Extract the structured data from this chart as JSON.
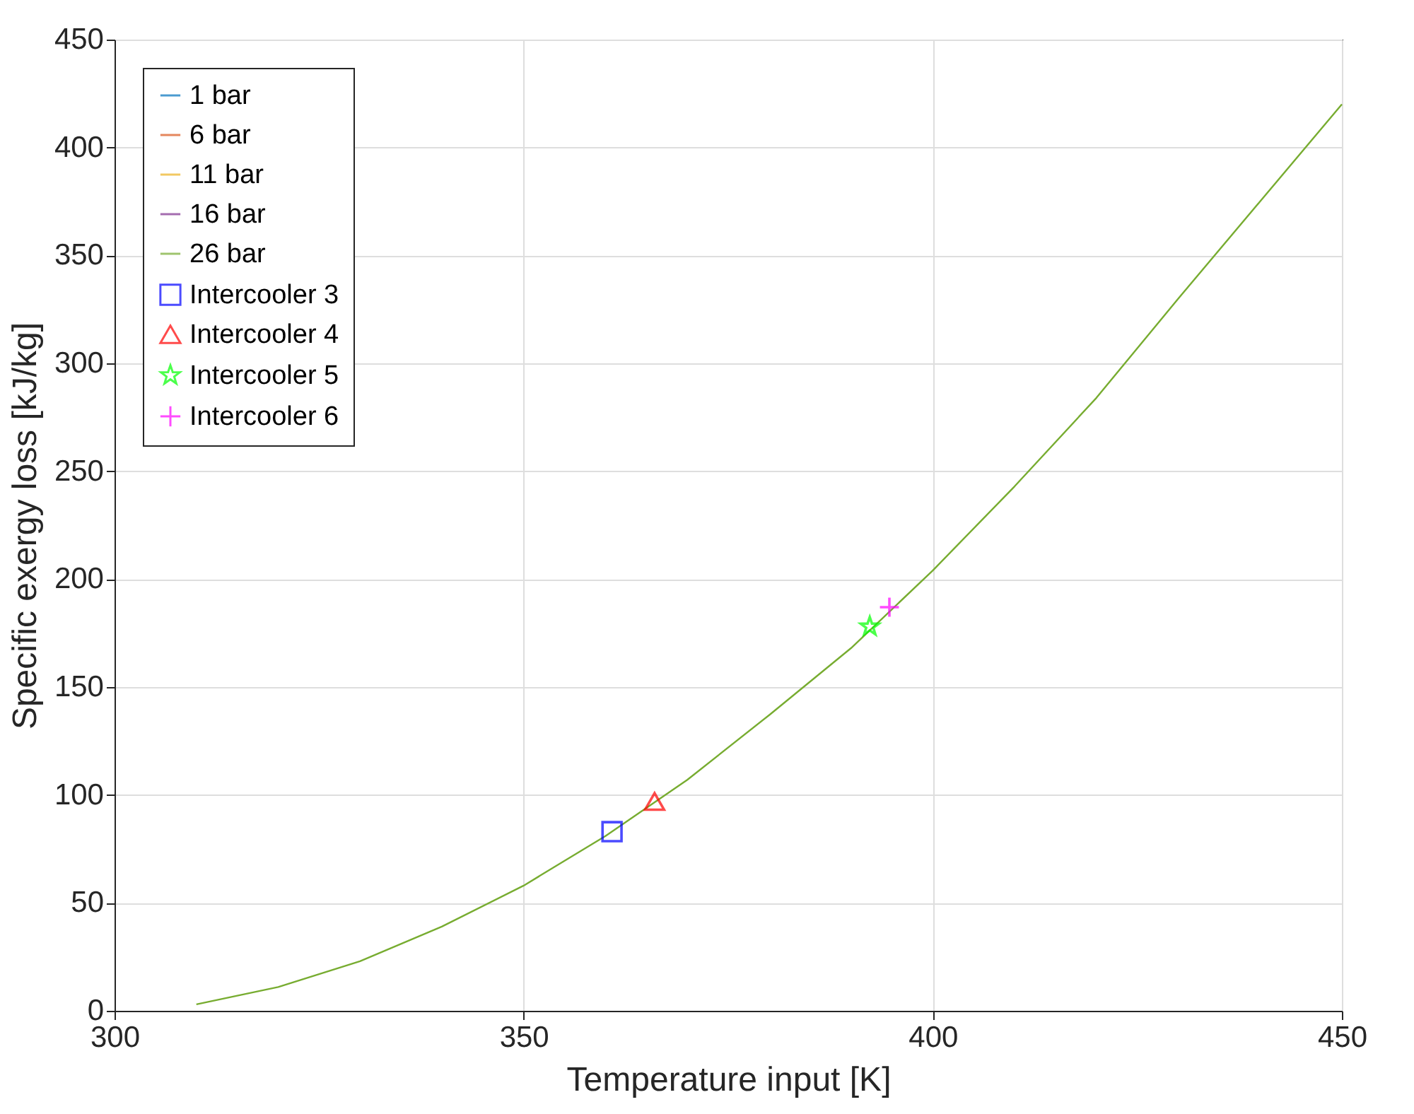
{
  "chart_data": {
    "type": "line",
    "xlabel": "Temperature input [K]",
    "ylabel": "Specific exergy loss [kJ/kg]",
    "x": [
      310,
      320,
      330,
      340,
      350,
      360,
      370,
      380,
      390,
      400,
      410,
      420,
      430,
      440,
      450
    ],
    "series": [
      {
        "name": "1 bar",
        "color": "#0072bd",
        "values": [
          null,
          null,
          null,
          null,
          null,
          null,
          null,
          null,
          null,
          null,
          null,
          null,
          null,
          null,
          null
        ]
      },
      {
        "name": "6 bar",
        "color": "#d95319",
        "values": [
          null,
          null,
          null,
          null,
          null,
          null,
          null,
          null,
          null,
          null,
          null,
          null,
          null,
          null,
          null
        ]
      },
      {
        "name": "11 bar",
        "color": "#edb120",
        "values": [
          null,
          null,
          null,
          null,
          null,
          null,
          null,
          null,
          null,
          null,
          null,
          null,
          null,
          null,
          null
        ]
      },
      {
        "name": "16 bar",
        "color": "#7e2f8e",
        "values": [
          null,
          null,
          null,
          null,
          null,
          null,
          null,
          null,
          null,
          null,
          null,
          null,
          null,
          null,
          null
        ]
      },
      {
        "name": "26 bar",
        "color": "#77ac30",
        "values": [
          3,
          11,
          23,
          39,
          58,
          81,
          107,
          137,
          168,
          204,
          243,
          284,
          330,
          375,
          420
        ]
      },
      {
        "name": "Intercooler 3",
        "type": "scatter",
        "marker": "square",
        "color": "#0000ff",
        "x": [
          360.8
        ],
        "values": [
          83
        ]
      },
      {
        "name": "Intercooler 4",
        "type": "scatter",
        "marker": "triangle",
        "color": "#ff0000",
        "x": [
          366
        ],
        "values": [
          97
        ]
      },
      {
        "name": "Intercooler 5",
        "type": "scatter",
        "marker": "star",
        "color": "#00ff00",
        "x": [
          392.3
        ],
        "values": [
          178
        ]
      },
      {
        "name": "Intercooler 6",
        "type": "scatter",
        "marker": "cross",
        "color": "#ff00ff",
        "x": [
          394.7
        ],
        "values": [
          187
        ]
      }
    ],
    "xlim": [
      300,
      450
    ],
    "xticks": [
      300,
      350,
      400,
      450
    ],
    "ylim": [
      0,
      450
    ],
    "yticks": [
      0,
      50,
      100,
      150,
      200,
      250,
      300,
      350,
      400,
      450
    ],
    "grid": true,
    "legend": "top left"
  }
}
